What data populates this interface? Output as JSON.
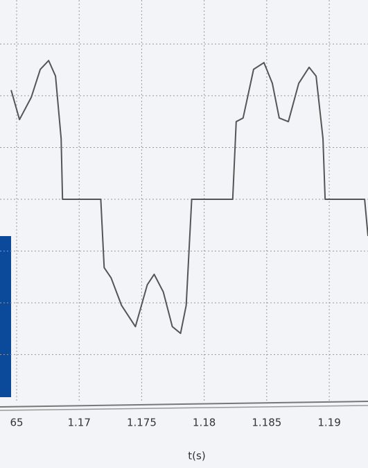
{
  "chart_data": {
    "type": "line",
    "x_label": "t(s)",
    "x": [
      1.16456,
      1.16523,
      1.16617,
      1.16689,
      1.16756,
      1.16811,
      1.16856,
      1.16867,
      1.17173,
      1.172,
      1.17256,
      1.17339,
      1.1745,
      1.17545,
      1.176,
      1.17673,
      1.17745,
      1.17811,
      1.17856,
      1.179,
      1.18228,
      1.18256,
      1.18311,
      1.18395,
      1.18478,
      1.18545,
      1.186,
      1.18673,
      1.18756,
      1.18839,
      1.18895,
      1.1895,
      1.18967,
      1.19283,
      1.1931
    ],
    "series": [
      {
        "color": "#555555",
        "values": [
          2.11,
          1.54,
          1.97,
          2.51,
          2.68,
          2.38,
          1.17,
          0,
          0,
          -1.32,
          -1.52,
          -2.05,
          -2.46,
          -1.65,
          -1.45,
          -1.79,
          -2.46,
          -2.59,
          -2.05,
          0,
          0,
          1.5,
          1.57,
          2.51,
          2.64,
          2.24,
          1.57,
          1.5,
          2.24,
          2.55,
          2.38,
          1.17,
          0,
          0,
          -0.71
        ]
      }
    ],
    "xlim": [
      1.16367,
      1.1931
    ],
    "ylim": [
      -3.93,
      3.85
    ],
    "xticks": [
      {
        "value": 1.165,
        "label": "65"
      },
      1.17,
      1.175,
      1.18,
      1.185,
      1.19
    ],
    "yticks": [
      -3,
      -2,
      -1,
      0,
      1,
      2,
      3
    ],
    "grid": true
  }
}
